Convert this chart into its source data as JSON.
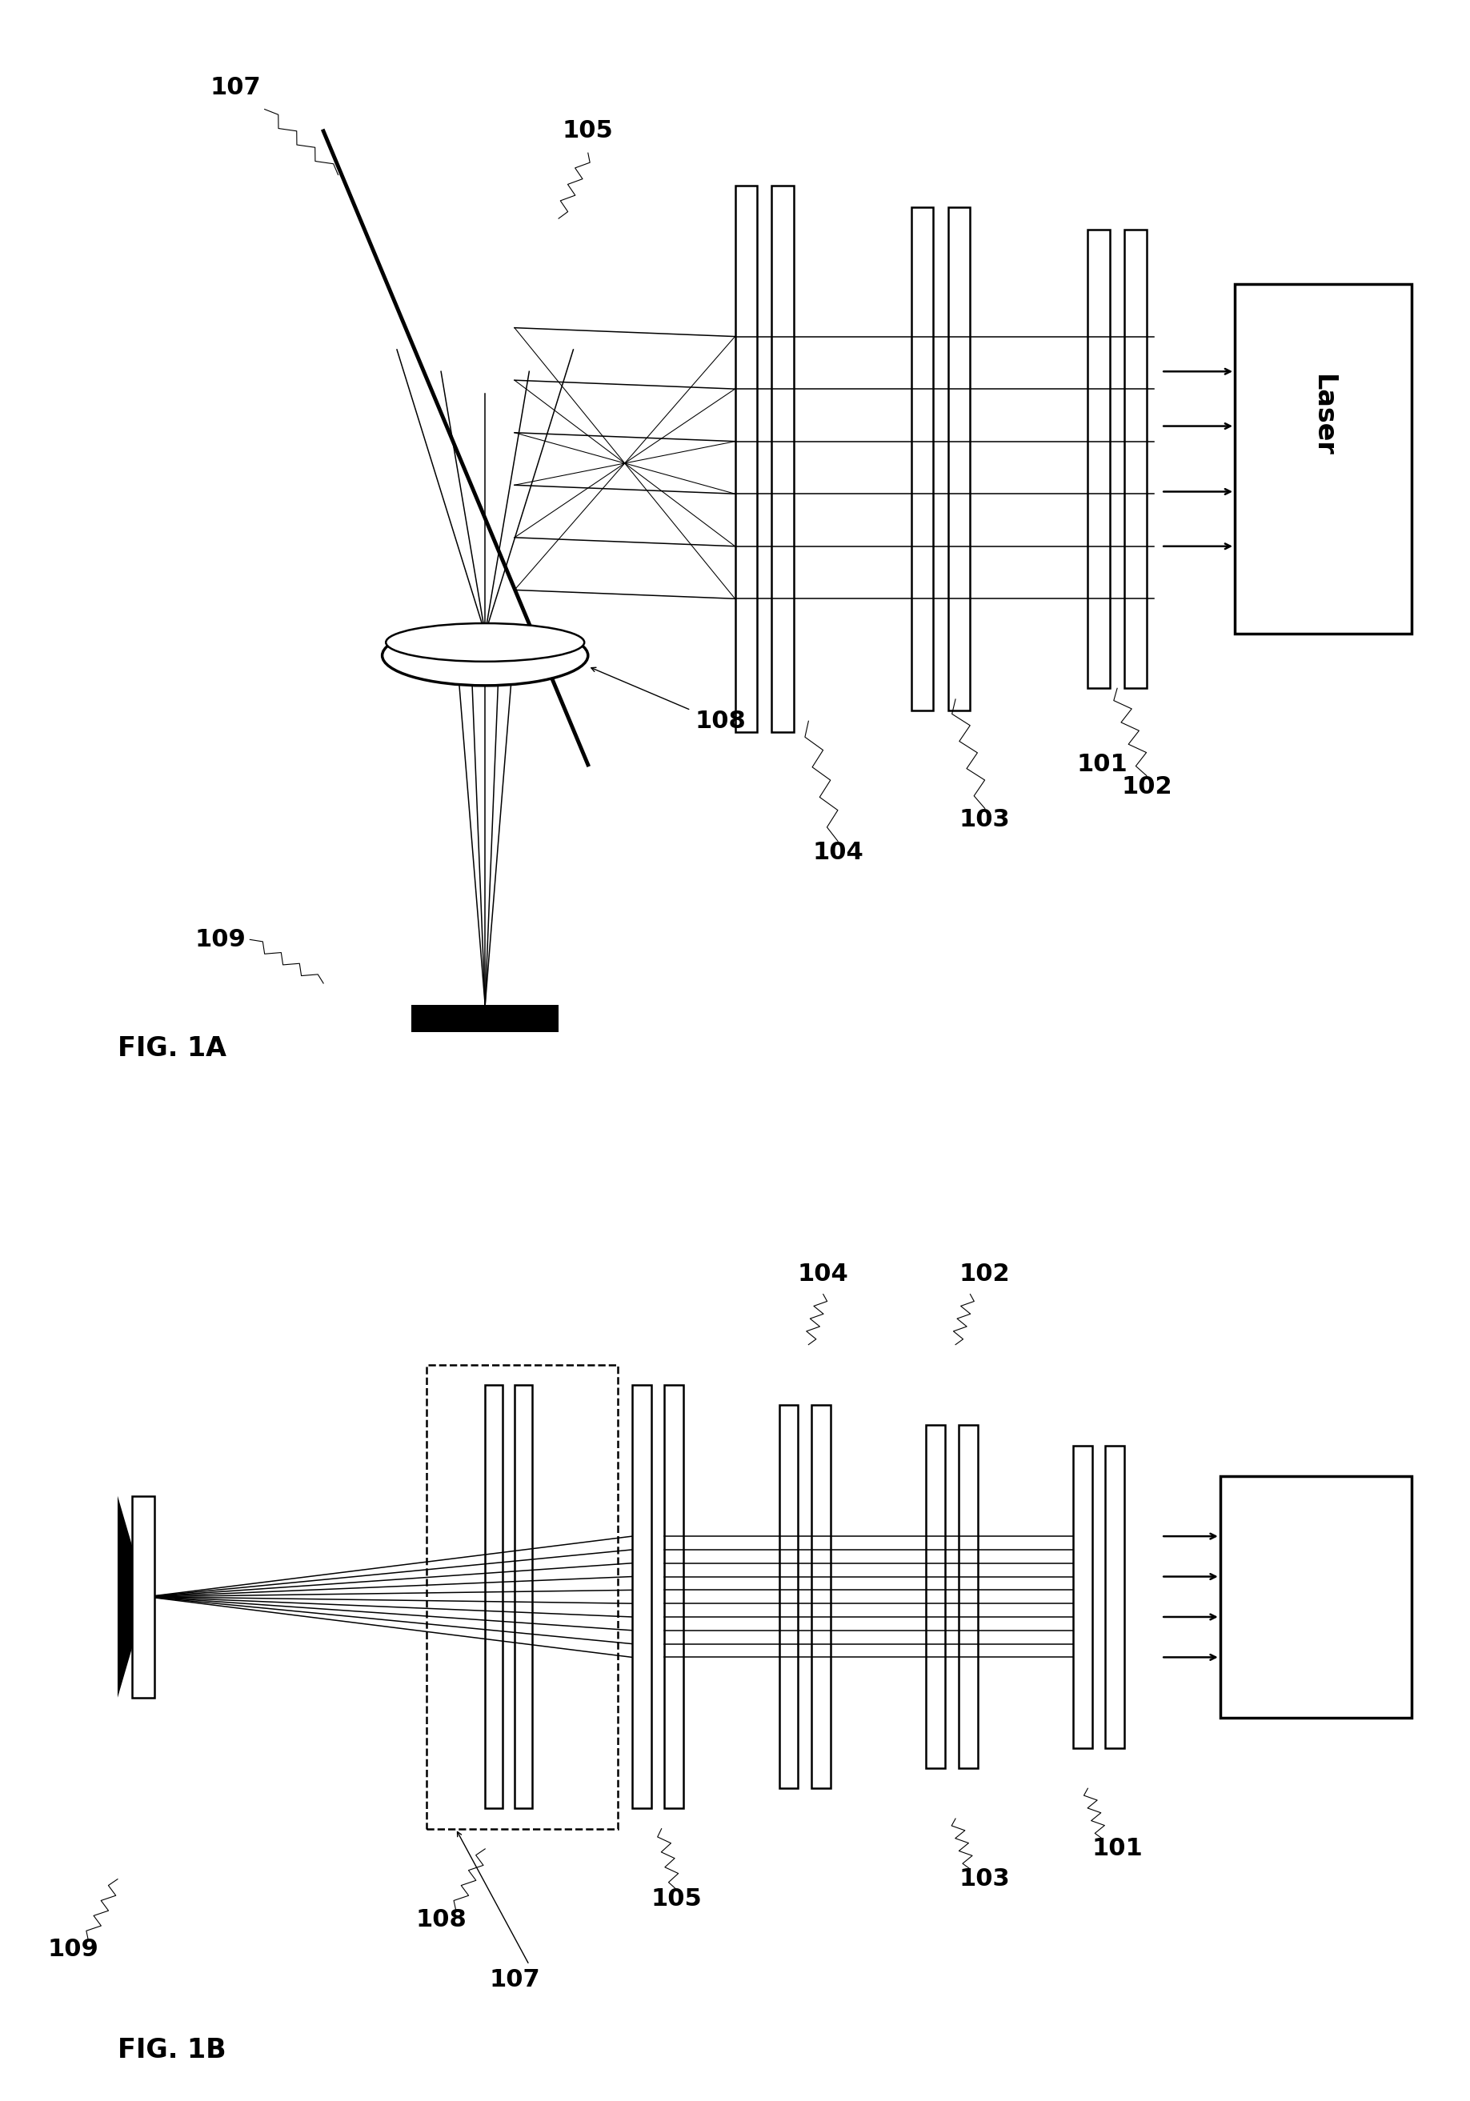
{
  "bg_color": "#ffffff",
  "fig_width": 18.37,
  "fig_height": 26.26,
  "fig1a_label": "FIG. 1A",
  "fig1b_label": "FIG. 1B",
  "lw_main": 1.8,
  "lw_thick": 2.5,
  "lw_beam": 1.1,
  "fs_label": 22,
  "fs_fig": 24,
  "labels": {
    "101": "101",
    "102": "102",
    "103": "103",
    "104": "104",
    "105": "105",
    "107": "107",
    "108": "108",
    "109": "109",
    "laser": "Laser"
  }
}
